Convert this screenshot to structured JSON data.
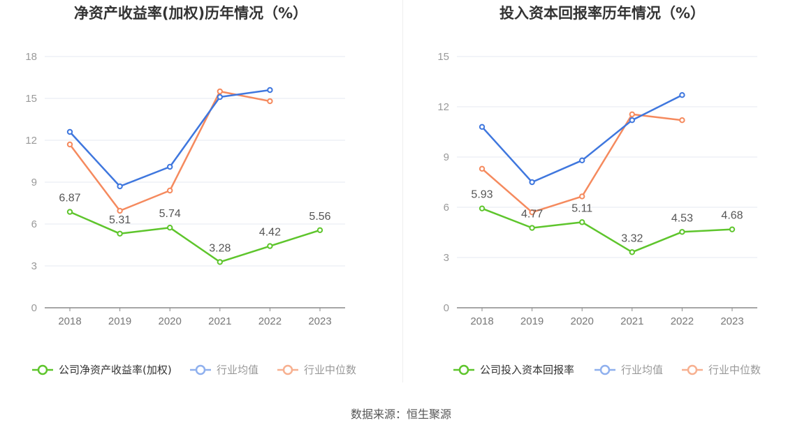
{
  "source_text": "数据来源：恒生聚源",
  "colors": {
    "company": "#5ec52c",
    "industry_avg": "#3f77de",
    "industry_median": "#f58a5e",
    "legend_avg": "#8fb0ee",
    "legend_median": "#f7b090"
  },
  "chart_data": [
    {
      "type": "line",
      "title": "净资产收益率(加权)历年情况（%）",
      "x": [
        "2018",
        "2019",
        "2020",
        "2021",
        "2022",
        "2023"
      ],
      "ylim": [
        0,
        18
      ],
      "yticks": [
        0,
        3,
        6,
        9,
        12,
        15,
        18
      ],
      "grid": true,
      "legend_position": "bottom",
      "series": [
        {
          "name": "公司净资产收益率(加权)",
          "values": [
            6.87,
            5.31,
            5.74,
            3.28,
            4.42,
            5.56
          ],
          "labels": [
            "6.87",
            "5.31",
            "5.74",
            "3.28",
            "4.42",
            "5.56"
          ]
        },
        {
          "name": "行业均值",
          "values": [
            12.6,
            8.7,
            10.1,
            15.1,
            15.6,
            null
          ]
        },
        {
          "name": "行业中位数",
          "values": [
            11.7,
            6.95,
            8.4,
            15.5,
            14.8,
            null
          ]
        }
      ]
    },
    {
      "type": "line",
      "title": "投入资本回报率历年情况（%）",
      "x": [
        "2018",
        "2019",
        "2020",
        "2021",
        "2022",
        "2023"
      ],
      "ylim": [
        0,
        15
      ],
      "yticks": [
        0,
        3,
        6,
        9,
        12,
        15
      ],
      "grid": true,
      "legend_position": "bottom",
      "series": [
        {
          "name": "公司投入资本回报率",
          "values": [
            5.93,
            4.77,
            5.11,
            3.32,
            4.53,
            4.68
          ],
          "labels": [
            "5.93",
            "4.77",
            "5.11",
            "3.32",
            "4.53",
            "4.68"
          ]
        },
        {
          "name": "行业均值",
          "values": [
            10.8,
            7.5,
            8.8,
            11.2,
            12.7,
            null
          ]
        },
        {
          "name": "行业中位数",
          "values": [
            8.3,
            5.7,
            6.65,
            11.55,
            11.2,
            null
          ]
        }
      ]
    }
  ]
}
